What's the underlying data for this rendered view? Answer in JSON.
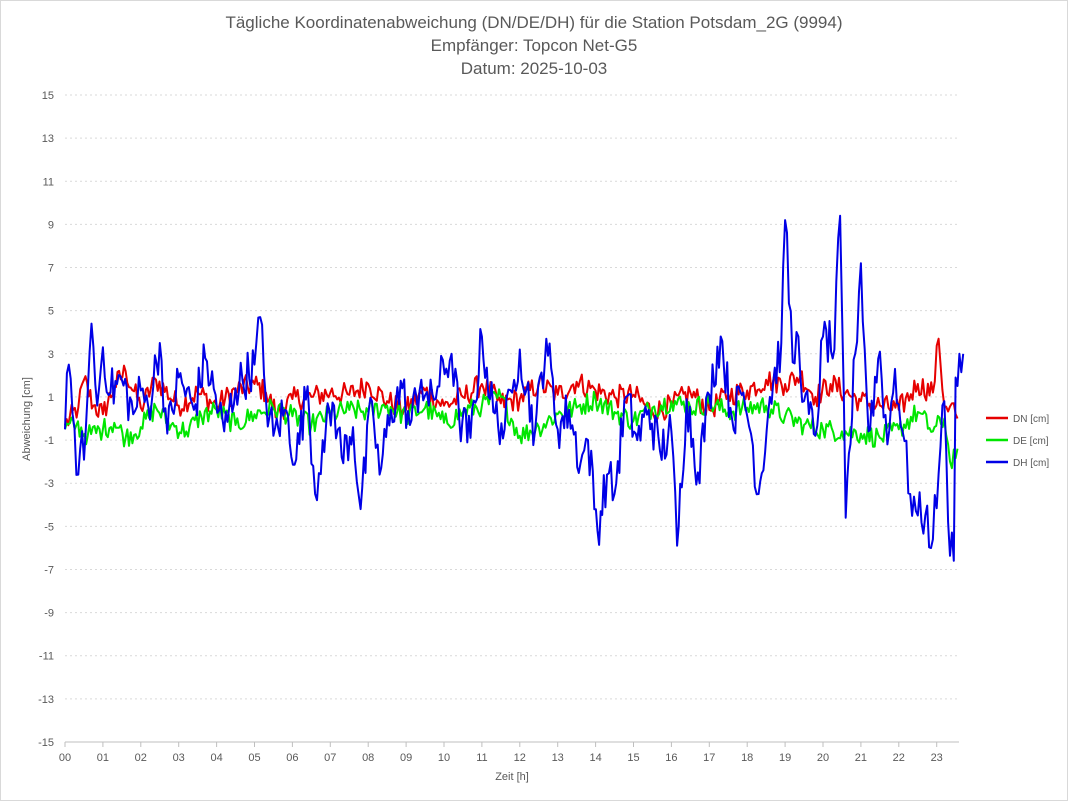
{
  "chart_data": {
    "type": "line",
    "title_lines": [
      "Tägliche Koordinatenabweichung (DN/DE/DH) für die Station Potsdam_2G (9994)",
      "Empfänger: Topcon Net-G5",
      "Datum: 2025-10-03"
    ],
    "xlabel": "Zeit [h]",
    "ylabel": "Abweichung [cm]",
    "xlim": [
      0,
      24
    ],
    "ylim": [
      -15,
      15
    ],
    "x_ticks": [
      "00",
      "01",
      "02",
      "03",
      "04",
      "05",
      "06",
      "07",
      "08",
      "09",
      "10",
      "11",
      "12",
      "13",
      "14",
      "15",
      "16",
      "17",
      "18",
      "19",
      "20",
      "21",
      "22",
      "23"
    ],
    "y_ticks": [
      15,
      13,
      11,
      9,
      7,
      5,
      3,
      1,
      -1,
      -3,
      -5,
      -7,
      -9,
      -11,
      -13,
      -15
    ],
    "grid": "horizontal dotted",
    "legend_position": "right",
    "series": [
      {
        "name": "DN [cm]",
        "color": "#e60000",
        "keypoints": [
          [
            0,
            -0.3
          ],
          [
            0.35,
            0.5
          ],
          [
            0.5,
            1.8
          ],
          [
            0.75,
            0.6
          ],
          [
            1,
            0.2
          ],
          [
            1.3,
            1.5
          ],
          [
            1.6,
            2.2
          ],
          [
            2,
            0.5
          ],
          [
            2.4,
            1.8
          ],
          [
            3,
            0.6
          ],
          [
            3.5,
            1.2
          ],
          [
            4,
            0.6
          ],
          [
            4.5,
            1.3
          ],
          [
            5,
            1.6
          ],
          [
            5.3,
            1.2
          ],
          [
            5.6,
            0.2
          ],
          [
            6,
            0.9
          ],
          [
            6.5,
            1.0
          ],
          [
            7,
            1.2
          ],
          [
            7.5,
            1.1
          ],
          [
            8,
            1.6
          ],
          [
            8.5,
            0.8
          ],
          [
            9,
            0.4
          ],
          [
            9.5,
            1.3
          ],
          [
            10,
            0.6
          ],
          [
            10.5,
            1.0
          ],
          [
            11,
            1.6
          ],
          [
            11.5,
            0.7
          ],
          [
            12,
            0.9
          ],
          [
            12.5,
            1.6
          ],
          [
            13,
            1.1
          ],
          [
            13.5,
            1.7
          ],
          [
            14,
            1.3
          ],
          [
            14.5,
            1.0
          ],
          [
            15,
            1.1
          ],
          [
            15.5,
            0.3
          ],
          [
            16,
            0.6
          ],
          [
            16.5,
            1.2
          ],
          [
            17,
            0.4
          ],
          [
            17.5,
            1.1
          ],
          [
            18,
            1.3
          ],
          [
            18.5,
            1.8
          ],
          [
            19,
            1.6
          ],
          [
            19.4,
            2.0
          ],
          [
            19.8,
            1.0
          ],
          [
            20.2,
            1.6
          ],
          [
            20.6,
            1.2
          ],
          [
            21,
            0.8
          ],
          [
            21.5,
            0.6
          ],
          [
            22,
            0.4
          ],
          [
            22.5,
            1.6
          ],
          [
            22.9,
            1.2
          ],
          [
            23.05,
            3.7
          ],
          [
            23.2,
            0.6
          ],
          [
            23.4,
            0.7
          ],
          [
            23.55,
            0.0
          ]
        ]
      },
      {
        "name": "DE [cm]",
        "color": "#00e600",
        "keypoints": [
          [
            0,
            -0.5
          ],
          [
            0.3,
            -0.3
          ],
          [
            0.6,
            -0.8
          ],
          [
            1,
            -0.5
          ],
          [
            1.3,
            -0.2
          ],
          [
            1.6,
            -0.9
          ],
          [
            2,
            -0.4
          ],
          [
            2.4,
            0.5
          ],
          [
            2.8,
            -0.3
          ],
          [
            3.2,
            -0.6
          ],
          [
            3.6,
            0.1
          ],
          [
            4,
            0.4
          ],
          [
            4.5,
            -0.3
          ],
          [
            5,
            0.2
          ],
          [
            5.5,
            0.5
          ],
          [
            6,
            0.1
          ],
          [
            6.5,
            -0.3
          ],
          [
            7,
            0.2
          ],
          [
            7.5,
            0.4
          ],
          [
            8,
            0.3
          ],
          [
            8.5,
            0.6
          ],
          [
            9,
            0.1
          ],
          [
            9.5,
            0.5
          ],
          [
            10,
            -0.2
          ],
          [
            10.5,
            0.3
          ],
          [
            11,
            0.6
          ],
          [
            11.5,
            1.0
          ],
          [
            12,
            -0.8
          ],
          [
            12.5,
            -0.4
          ],
          [
            13,
            0.2
          ],
          [
            13.5,
            0.5
          ],
          [
            14,
            0.9
          ],
          [
            14.5,
            0.3
          ],
          [
            15,
            -0.1
          ],
          [
            15.5,
            0.5
          ],
          [
            16,
            0.8
          ],
          [
            16.5,
            0.5
          ],
          [
            17,
            0.7
          ],
          [
            17.5,
            0.3
          ],
          [
            18,
            0.5
          ],
          [
            18.5,
            0.6
          ],
          [
            19,
            0.1
          ],
          [
            19.5,
            -0.3
          ],
          [
            20,
            -0.5
          ],
          [
            20.5,
            -0.6
          ],
          [
            21,
            -0.7
          ],
          [
            21.5,
            -0.9
          ],
          [
            22,
            -0.5
          ],
          [
            22.5,
            0.3
          ],
          [
            22.9,
            -0.6
          ],
          [
            23.2,
            0.0
          ],
          [
            23.35,
            -2.0
          ],
          [
            23.55,
            -1.4
          ]
        ]
      },
      {
        "name": "DH [cm]",
        "color": "#0000e6",
        "keypoints": [
          [
            0,
            -0.5
          ],
          [
            0.05,
            2.1
          ],
          [
            0.2,
            0.2
          ],
          [
            0.35,
            -2.6
          ],
          [
            0.55,
            -0.5
          ],
          [
            0.7,
            4.4
          ],
          [
            0.85,
            0.6
          ],
          [
            1,
            3.3
          ],
          [
            1.2,
            1.2
          ],
          [
            1.5,
            1.8
          ],
          [
            1.8,
            0.2
          ],
          [
            2,
            1.3
          ],
          [
            2.2,
            0.5
          ],
          [
            2.5,
            3.5
          ],
          [
            2.7,
            -0.7
          ],
          [
            3,
            1.9
          ],
          [
            3.4,
            0.4
          ],
          [
            3.7,
            2.8
          ],
          [
            4.2,
            -0.6
          ],
          [
            4.5,
            1.4
          ],
          [
            5,
            2.5
          ],
          [
            5.15,
            4.7
          ],
          [
            5.3,
            0.9
          ],
          [
            5.5,
            -0.8
          ],
          [
            5.8,
            0.4
          ],
          [
            6.1,
            -1.9
          ],
          [
            6.4,
            1.5
          ],
          [
            6.6,
            -3.5
          ],
          [
            6.8,
            -1.0
          ],
          [
            7.1,
            0.6
          ],
          [
            7.3,
            -1.8
          ],
          [
            7.6,
            -0.4
          ],
          [
            7.8,
            -4.2
          ],
          [
            8.1,
            0.8
          ],
          [
            8.3,
            -2.6
          ],
          [
            8.6,
            0.4
          ],
          [
            8.9,
            1.4
          ],
          [
            9.1,
            -0.3
          ],
          [
            9.4,
            1.8
          ],
          [
            9.6,
            0.6
          ],
          [
            10.2,
            3.0
          ],
          [
            10.4,
            0.0
          ],
          [
            10.7,
            -0.9
          ],
          [
            11,
            3.8
          ],
          [
            11.3,
            0.3
          ],
          [
            11.6,
            -0.5
          ],
          [
            11.8,
            1.2
          ],
          [
            12,
            3.2
          ],
          [
            12.4,
            -0.6
          ],
          [
            12.7,
            3.7
          ],
          [
            13,
            -0.5
          ],
          [
            13.3,
            0.4
          ],
          [
            13.6,
            -2.1
          ],
          [
            13.8,
            -1.0
          ],
          [
            14.05,
            -5.2
          ],
          [
            14.3,
            -2.6
          ],
          [
            14.5,
            -3.5
          ],
          [
            14.8,
            1.0
          ],
          [
            15.1,
            -1.0
          ],
          [
            15.4,
            0.4
          ],
          [
            15.7,
            -1.5
          ],
          [
            16,
            -0.6
          ],
          [
            16.15,
            -5.9
          ],
          [
            16.4,
            0.9
          ],
          [
            16.7,
            -2.5
          ],
          [
            17,
            1.1
          ],
          [
            17.3,
            3.8
          ],
          [
            17.6,
            0.0
          ],
          [
            17.9,
            1.2
          ],
          [
            18.1,
            -0.7
          ],
          [
            18.3,
            -3.5
          ],
          [
            18.6,
            1.0
          ],
          [
            18.9,
            3.5
          ],
          [
            19,
            9.2
          ],
          [
            19.2,
            2.6
          ],
          [
            19.35,
            3.8
          ],
          [
            19.5,
            0.8
          ],
          [
            19.8,
            -0.8
          ],
          [
            20,
            3.8
          ],
          [
            20.3,
            3.2
          ],
          [
            20.45,
            9.4
          ],
          [
            20.6,
            -4.6
          ],
          [
            20.85,
            3.0
          ],
          [
            21,
            7.2
          ],
          [
            21.2,
            -0.6
          ],
          [
            21.5,
            3.1
          ],
          [
            21.7,
            -1.2
          ],
          [
            21.9,
            2.3
          ],
          [
            22.1,
            -0.6
          ],
          [
            22.3,
            -3.5
          ],
          [
            22.5,
            -4.5
          ],
          [
            22.7,
            -4.5
          ],
          [
            22.9,
            -5.6
          ],
          [
            23.1,
            -1.3
          ],
          [
            23.2,
            0.8
          ],
          [
            23.3,
            -4.8
          ],
          [
            23.45,
            -6.6
          ],
          [
            23.5,
            1.9
          ],
          [
            23.6,
            3.0
          ],
          [
            23.7,
            3.0
          ]
        ]
      }
    ]
  }
}
